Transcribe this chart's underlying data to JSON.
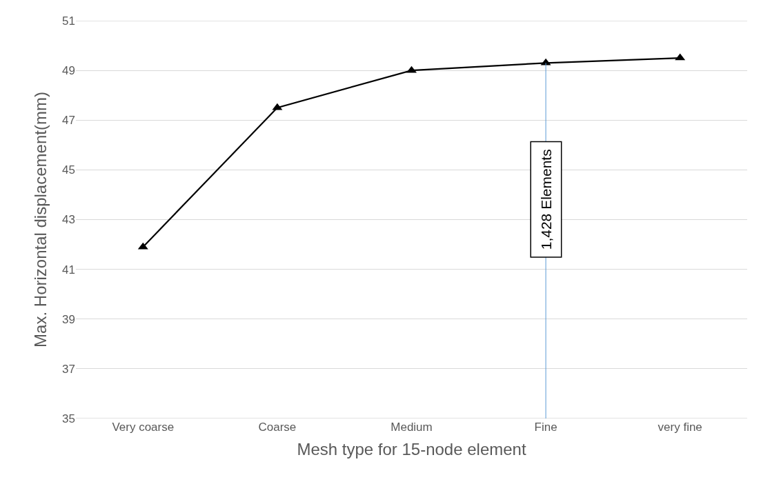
{
  "chart_data": {
    "type": "line",
    "xlabel": "Mesh type for 15-node element",
    "ylabel": "Max. Horizontal displacement(mm)",
    "categories": [
      "Very coarse",
      "Coarse",
      "Medium",
      "Fine",
      "very fine"
    ],
    "series": [
      {
        "color": "#000000",
        "values": [
          41.9,
          47.5,
          49.0,
          49.3,
          49.5
        ]
      }
    ],
    "ylim": [
      35,
      51
    ],
    "yticks": [
      35,
      37,
      39,
      41,
      43,
      45,
      47,
      49,
      51
    ],
    "grid": "y",
    "marker": "triangle",
    "line_style": "solid",
    "ref_lines": [
      {
        "axis": "x",
        "value": "Fine",
        "label": "1,428 Elements",
        "color": "#5b9bd5"
      }
    ]
  }
}
